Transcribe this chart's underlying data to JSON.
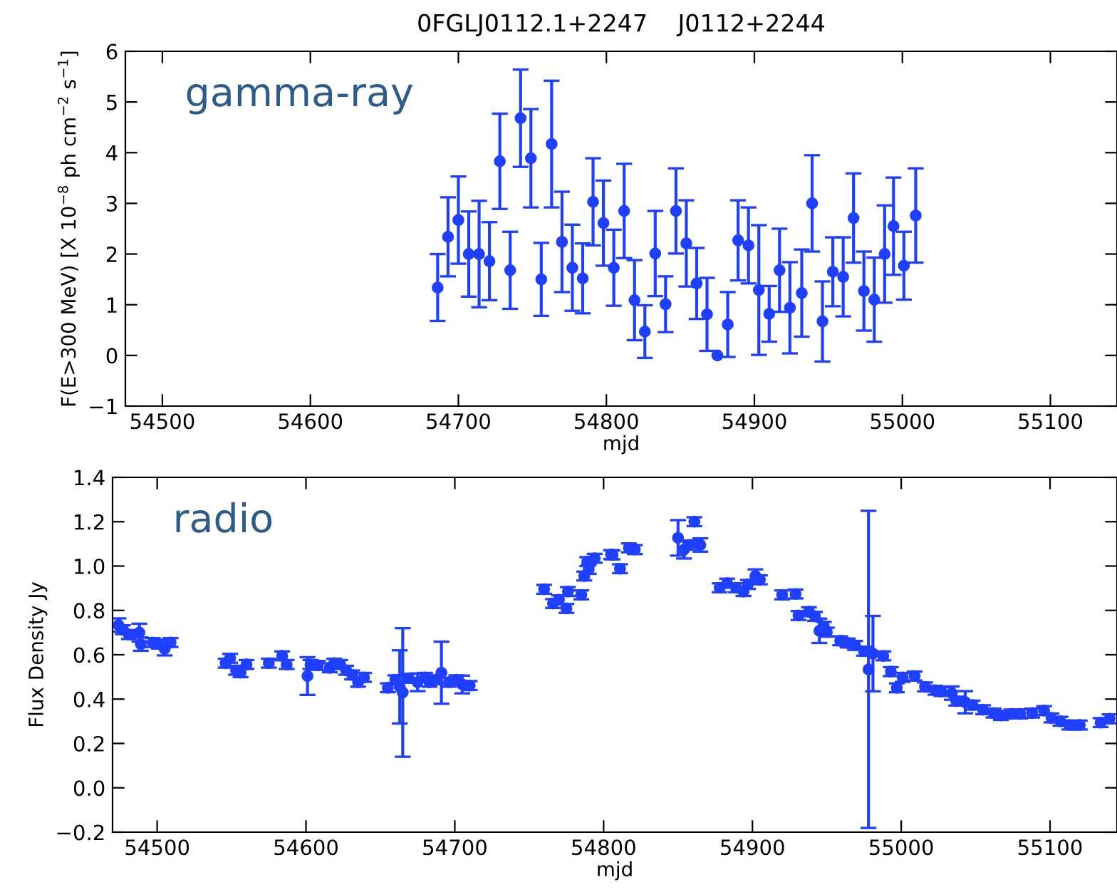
{
  "chart_data": [
    {
      "type": "scatter",
      "title": "0FGLJ0112.1+2247    J0112+2244",
      "xlabel": "mjd",
      "ylabel": "F(E>300 MeV) [X 10$^{−8}$ ph cm$^{−2}$ s$^{−1}$]",
      "annotations": [
        "gamma-ray"
      ],
      "color": "#1f3fff",
      "marker": "circle",
      "grid": false,
      "legend": false,
      "x": [
        54686,
        54693,
        54700,
        54707,
        54714,
        54721,
        54728,
        54735,
        54742,
        54749,
        54756,
        54763,
        54770,
        54777,
        54784,
        54791,
        54798,
        54805,
        54812,
        54819,
        54826,
        54833,
        54840,
        54847,
        54854,
        54861,
        54868,
        54875,
        54882,
        54889,
        54896,
        54903,
        54910,
        54917,
        54924,
        54932,
        54939,
        54946,
        54953,
        54960,
        54967,
        54974,
        54981,
        54988,
        54994,
        55001,
        55009
      ],
      "values": [
        1.34,
        2.34,
        2.67,
        2.0,
        2.0,
        1.86,
        3.83,
        1.68,
        4.68,
        3.89,
        1.5,
        4.17,
        2.24,
        1.73,
        1.52,
        3.03,
        2.61,
        1.73,
        2.85,
        1.09,
        0.47,
        2.01,
        1.01,
        2.85,
        2.21,
        1.42,
        0.81,
        0.0,
        0.61,
        2.27,
        2.17,
        1.29,
        0.82,
        1.68,
        0.94,
        1.23,
        3.0,
        0.67,
        1.65,
        1.55,
        2.71,
        1.27,
        1.1,
        2.0,
        2.55,
        1.77,
        2.76
      ],
      "errors": [
        0.66,
        0.78,
        0.86,
        0.84,
        1.05,
        0.77,
        0.94,
        0.76,
        0.96,
        0.97,
        0.72,
        1.25,
        0.99,
        0.85,
        0.69,
        0.86,
        0.84,
        0.75,
        0.93,
        0.79,
        0.52,
        0.84,
        0.55,
        0.84,
        0.85,
        0.7,
        0.72,
        null,
        0.64,
        0.79,
        0.75,
        1.28,
        0.55,
        0.82,
        0.9,
        0.86,
        0.95,
        0.79,
        0.68,
        0.78,
        0.88,
        0.78,
        0.83,
        0.96,
        0.96,
        0.67,
        0.93
      ],
      "xlim": [
        54475,
        55145
      ],
      "xticks": [
        54500,
        54600,
        54700,
        54800,
        54900,
        55000,
        55100
      ],
      "ylim": [
        -1,
        6
      ],
      "yticks": [
        {
          "value": -1,
          "label": "−1"
        },
        0,
        1,
        2,
        3,
        4,
        5,
        6
      ]
    },
    {
      "type": "scatter",
      "xlabel": "mjd",
      "ylabel": "Flux Density Jy",
      "annotations": [
        "radio"
      ],
      "color": "#1f3fff",
      "marker": "circle",
      "grid": false,
      "legend": false,
      "x": [
        54474,
        54477,
        54481,
        54488,
        54489,
        54497,
        54501,
        54505,
        54509,
        54546,
        54549,
        54553,
        54556,
        54560,
        54575,
        54584,
        54587,
        54601,
        54603,
        54608,
        54616,
        54619,
        54623,
        54627,
        54631,
        54635,
        54639,
        54655,
        54660,
        54663,
        54665,
        54669,
        54675,
        54680,
        54683,
        54687,
        54691,
        54696,
        54701,
        54705,
        54710,
        54760,
        54766,
        54770,
        54775,
        54776,
        54785,
        54787,
        54789,
        54790,
        54794,
        54805,
        54806,
        54811,
        54817,
        54821,
        54850,
        54854,
        54858,
        54861,
        54865,
        54878,
        54883,
        54889,
        54894,
        54897,
        54902,
        54905,
        54920,
        54929,
        54931,
        54938,
        54942,
        54945,
        54948,
        54950,
        54959,
        54964,
        54969,
        54975,
        54978,
        54981,
        54988,
        54993,
        54997,
        55001,
        55009,
        55016,
        55023,
        55027,
        55034,
        55037,
        55043,
        55048,
        55055,
        55062,
        55067,
        55074,
        55080,
        55088,
        55096,
        55101,
        55107,
        55113,
        55120,
        55134,
        55140
      ],
      "values": [
        0.734,
        0.713,
        0.691,
        0.7,
        0.648,
        0.655,
        0.648,
        0.627,
        0.655,
        0.562,
        0.584,
        0.53,
        0.519,
        0.556,
        0.562,
        0.595,
        0.556,
        0.504,
        0.556,
        0.552,
        0.541,
        0.562,
        0.556,
        0.53,
        0.509,
        0.476,
        0.498,
        0.451,
        0.487,
        0.455,
        0.43,
        0.494,
        0.476,
        0.498,
        0.476,
        0.487,
        0.519,
        0.476,
        0.487,
        0.466,
        0.461,
        0.895,
        0.831,
        0.848,
        0.809,
        0.885,
        0.87,
        0.955,
        1.02,
        0.985,
        1.035,
        1.052,
        1.05,
        0.988,
        1.082,
        1.074,
        1.127,
        1.074,
        1.095,
        1.2,
        1.095,
        0.902,
        0.923,
        0.902,
        0.885,
        0.917,
        0.955,
        0.938,
        0.87,
        0.874,
        0.777,
        0.794,
        0.773,
        0.708,
        0.728,
        0.702,
        0.663,
        0.653,
        0.642,
        0.616,
        0.534,
        0.605,
        0.595,
        0.524,
        0.451,
        0.498,
        0.504,
        0.455,
        0.44,
        0.434,
        0.427,
        0.391,
        0.386,
        0.373,
        0.352,
        0.337,
        0.326,
        0.333,
        0.333,
        0.337,
        0.348,
        0.315,
        0.3,
        0.283,
        0.283,
        0.294,
        0.311
      ],
      "errors": [
        0.03,
        0.02,
        0.02,
        0.04,
        0.03,
        0.02,
        0.02,
        0.03,
        0.02,
        0.02,
        0.02,
        0.02,
        0.02,
        0.02,
        0.02,
        0.02,
        0.02,
        0.085,
        0.02,
        0.02,
        0.02,
        0.02,
        0.02,
        0.02,
        0.02,
        0.02,
        0.02,
        0.02,
        0.02,
        0.165,
        0.29,
        0.02,
        0.04,
        0.02,
        0.02,
        0.02,
        0.14,
        0.02,
        0.02,
        0.04,
        0.02,
        0.02,
        0.02,
        0.02,
        0.02,
        0.02,
        0.02,
        0.02,
        0.02,
        0.02,
        0.02,
        0.02,
        0.02,
        0.02,
        0.02,
        0.02,
        0.08,
        0.04,
        0.02,
        0.02,
        0.03,
        0.02,
        0.02,
        0.02,
        0.02,
        0.02,
        0.03,
        0.02,
        0.02,
        0.02,
        0.02,
        0.02,
        0.02,
        0.055,
        0.02,
        0.02,
        0.02,
        0.02,
        0.02,
        0.02,
        0.715,
        0.17,
        0.02,
        0.02,
        0.02,
        0.02,
        0.02,
        0.02,
        0.02,
        0.02,
        0.03,
        0.02,
        0.05,
        0.02,
        0.02,
        0.02,
        0.02,
        0.02,
        0.02,
        0.02,
        0.02,
        0.02,
        0.02,
        0.02,
        0.02,
        0.02,
        0.02
      ],
      "xlim": [
        54470,
        55145
      ],
      "xticks": [
        54500,
        54600,
        54700,
        54800,
        54900,
        55000,
        55100
      ],
      "ylim": [
        -0.2,
        1.4
      ],
      "yticks": [
        {
          "value": -0.2,
          "label": "−0.2"
        },
        {
          "value": 0.0,
          "label": "0.0"
        },
        {
          "value": 0.2,
          "label": "0.2"
        },
        {
          "value": 0.4,
          "label": "0.4"
        },
        {
          "value": 0.6,
          "label": "0.6"
        },
        {
          "value": 0.8,
          "label": "0.8"
        },
        {
          "value": 1.0,
          "label": "1.0"
        },
        {
          "value": 1.2,
          "label": "1.2"
        },
        {
          "value": 1.4,
          "label": "1.4"
        }
      ]
    }
  ]
}
